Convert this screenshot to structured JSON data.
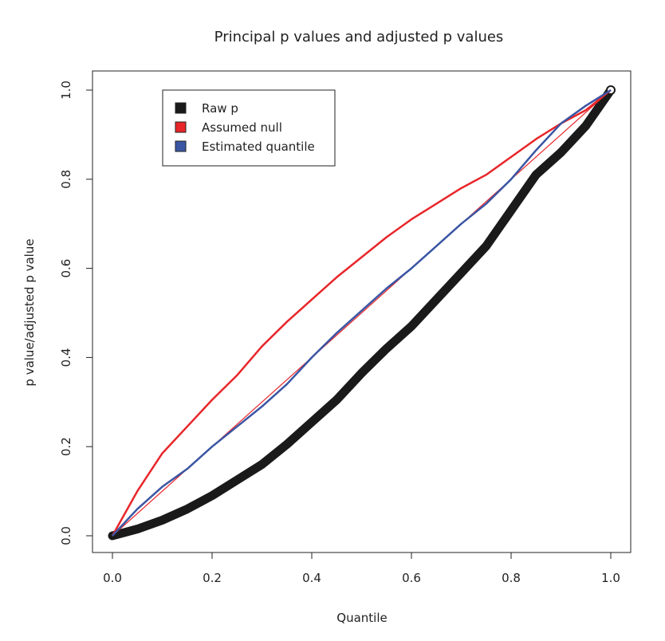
{
  "chart_data": {
    "type": "line",
    "title": "Principal p values and adjusted p values",
    "xlabel": "Quantile",
    "ylabel": "p value/adjusted p value",
    "xlim": [
      0.0,
      1.0
    ],
    "ylim": [
      0.0,
      1.0
    ],
    "xticks": [
      "0.0",
      "0.2",
      "0.4",
      "0.6",
      "0.8",
      "1.0"
    ],
    "yticks": [
      "0.0",
      "0.2",
      "0.4",
      "0.6",
      "0.8",
      "1.0"
    ],
    "legend_position": "top-left",
    "grid": false,
    "series": [
      {
        "name": "Raw p",
        "color": "#1a1a1a",
        "style": "thick-points",
        "x": [
          0.0,
          0.05,
          0.1,
          0.15,
          0.2,
          0.25,
          0.3,
          0.35,
          0.4,
          0.45,
          0.5,
          0.55,
          0.6,
          0.65,
          0.7,
          0.75,
          0.8,
          0.85,
          0.9,
          0.95,
          1.0
        ],
        "y": [
          0.0,
          0.015,
          0.035,
          0.06,
          0.09,
          0.125,
          0.16,
          0.205,
          0.255,
          0.305,
          0.365,
          0.42,
          0.47,
          0.53,
          0.59,
          0.65,
          0.73,
          0.81,
          0.86,
          0.92,
          1.0
        ]
      },
      {
        "name": "Assumed null",
        "color": "#e8262a",
        "style": "line",
        "x": [
          0.0,
          0.05,
          0.1,
          0.15,
          0.2,
          0.25,
          0.3,
          0.35,
          0.4,
          0.45,
          0.5,
          0.55,
          0.6,
          0.65,
          0.7,
          0.75,
          0.8,
          0.85,
          0.9,
          0.95,
          1.0
        ],
        "y": [
          0.0,
          0.1,
          0.185,
          0.245,
          0.305,
          0.36,
          0.425,
          0.48,
          0.53,
          0.58,
          0.625,
          0.67,
          0.71,
          0.745,
          0.78,
          0.81,
          0.85,
          0.89,
          0.925,
          0.955,
          1.0
        ]
      },
      {
        "name": "Estimated quantile",
        "color": "#3a55a3",
        "style": "line",
        "x": [
          0.0,
          0.05,
          0.1,
          0.15,
          0.2,
          0.25,
          0.3,
          0.35,
          0.4,
          0.45,
          0.5,
          0.55,
          0.6,
          0.65,
          0.7,
          0.75,
          0.8,
          0.85,
          0.9,
          0.95,
          1.0
        ],
        "y": [
          0.0,
          0.06,
          0.11,
          0.15,
          0.2,
          0.245,
          0.29,
          0.34,
          0.4,
          0.455,
          0.505,
          0.555,
          0.6,
          0.65,
          0.7,
          0.745,
          0.8,
          0.865,
          0.925,
          0.965,
          1.0
        ]
      },
      {
        "name": "",
        "color": "#e8262a",
        "style": "thin-reference",
        "x": [
          0.0,
          1.0
        ],
        "y": [
          0.0,
          1.0
        ]
      }
    ]
  }
}
